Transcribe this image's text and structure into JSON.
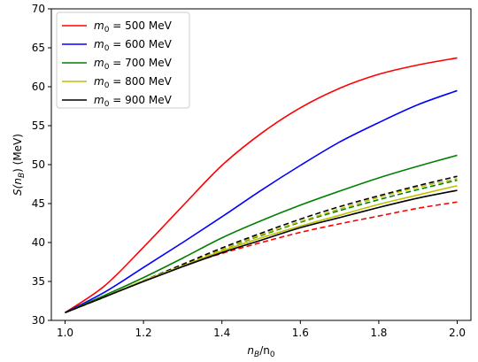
{
  "chart_data": {
    "type": "line",
    "xlabel_main": "n",
    "xlabel_sub": "B",
    "xlabel_tail": "/n",
    "xlabel_sub2": "0",
    "ylabel_main": "S(n",
    "ylabel_sub": "B",
    "ylabel_tail": ") (MeV)",
    "xlim": [
      0.965,
      2.035
    ],
    "ylim": [
      30,
      70
    ],
    "xticks": [
      1.0,
      1.2,
      1.4,
      1.6,
      1.8,
      2.0
    ],
    "xtick_labels": [
      "1.0",
      "1.2",
      "1.4",
      "1.6",
      "1.8",
      "2.0"
    ],
    "yticks": [
      30,
      35,
      40,
      45,
      50,
      55,
      60,
      65,
      70
    ],
    "ytick_labels": [
      "30",
      "35",
      "40",
      "45",
      "50",
      "55",
      "60",
      "65",
      "70"
    ],
    "legend_position": "top-left",
    "legend_prefix": "m",
    "legend_sub": "0",
    "series": [
      {
        "name": " = 500 MeV",
        "color": "#ff0000",
        "style": "solid",
        "x": [
          1.0,
          1.1,
          1.2,
          1.3,
          1.4,
          1.5,
          1.6,
          1.7,
          1.8,
          1.9,
          2.0
        ],
        "y": [
          31.0,
          34.4,
          39.4,
          44.7,
          49.9,
          54.0,
          57.3,
          59.8,
          61.6,
          62.8,
          63.7
        ]
      },
      {
        "name": " = 600 MeV",
        "color": "#0000ff",
        "style": "solid",
        "x": [
          1.0,
          1.1,
          1.2,
          1.3,
          1.4,
          1.5,
          1.6,
          1.7,
          1.8,
          1.9,
          2.0
        ],
        "y": [
          31.0,
          33.6,
          36.8,
          40.0,
          43.3,
          46.7,
          49.9,
          52.9,
          55.4,
          57.7,
          59.5
        ]
      },
      {
        "name": " = 700 MeV",
        "color": "#008000",
        "style": "solid",
        "x": [
          1.0,
          1.1,
          1.2,
          1.3,
          1.4,
          1.5,
          1.6,
          1.7,
          1.8,
          1.9,
          2.0
        ],
        "y": [
          31.0,
          33.2,
          35.5,
          38.0,
          40.6,
          42.8,
          44.8,
          46.6,
          48.3,
          49.8,
          51.2
        ]
      },
      {
        "name": " = 800 MeV",
        "color": "#bfbf00",
        "style": "solid",
        "x": [
          1.0,
          1.1,
          1.2,
          1.3,
          1.4,
          1.5,
          1.6,
          1.7,
          1.8,
          1.9,
          2.0
        ],
        "y": [
          31.0,
          33.0,
          35.1,
          37.0,
          38.9,
          40.6,
          42.1,
          43.5,
          44.9,
          46.1,
          47.3
        ]
      },
      {
        "name": " = 900 MeV",
        "color": "#000000",
        "style": "solid",
        "x": [
          1.0,
          1.1,
          1.2,
          1.3,
          1.4,
          1.5,
          1.6,
          1.7,
          1.8,
          1.9,
          2.0
        ],
        "y": [
          31.0,
          33.0,
          35.0,
          36.9,
          38.7,
          40.3,
          41.9,
          43.2,
          44.5,
          45.7,
          46.7
        ]
      },
      {
        "color": "#ff0000",
        "style": "dashed",
        "x": [
          1.0,
          1.1,
          1.2,
          1.3,
          1.4,
          1.5,
          1.6,
          1.7,
          1.8,
          1.9,
          2.0
        ],
        "y": [
          31.0,
          33.0,
          35.1,
          37.0,
          38.6,
          40.0,
          41.3,
          42.4,
          43.4,
          44.4,
          45.2
        ]
      },
      {
        "color": "#008000",
        "style": "dashed",
        "x": [
          1.0,
          1.1,
          1.2,
          1.3,
          1.4,
          1.5,
          1.6,
          1.7,
          1.8,
          1.9,
          2.0
        ],
        "y": [
          31.0,
          33.0,
          35.1,
          37.1,
          39.1,
          40.9,
          42.6,
          44.1,
          45.5,
          46.8,
          48.0
        ]
      },
      {
        "color": "#bfbf00",
        "style": "dashed",
        "x": [
          1.0,
          1.1,
          1.2,
          1.3,
          1.4,
          1.5,
          1.6,
          1.7,
          1.8,
          1.9,
          2.0
        ],
        "y": [
          31.0,
          33.0,
          35.1,
          37.1,
          39.1,
          41.0,
          42.7,
          44.3,
          45.8,
          47.1,
          48.2
        ]
      },
      {
        "color": "#000000",
        "style": "dashed",
        "x": [
          1.0,
          1.1,
          1.2,
          1.3,
          1.4,
          1.5,
          1.6,
          1.7,
          1.8,
          1.9,
          2.0
        ],
        "y": [
          31.0,
          33.0,
          35.1,
          37.2,
          39.3,
          41.2,
          43.0,
          44.6,
          46.0,
          47.3,
          48.5
        ]
      }
    ]
  }
}
